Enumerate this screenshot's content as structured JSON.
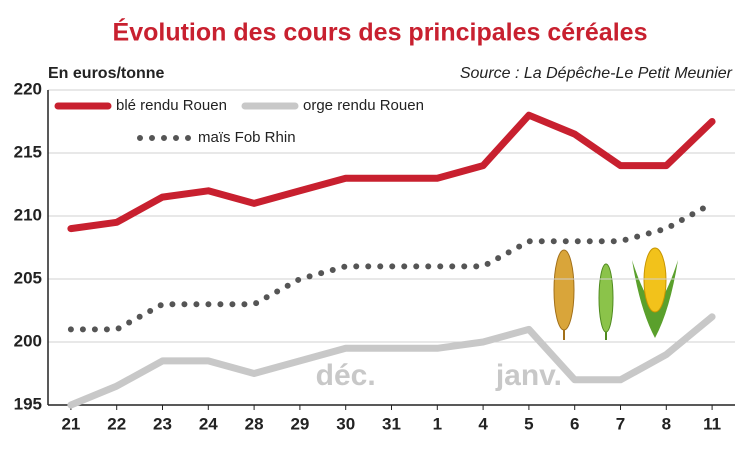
{
  "chart_data": {
    "type": "line",
    "title": "Évolution des cours des principales céréales",
    "y_label": "En euros/tonne",
    "source": "Source : La Dépêche-Le Petit Meunier",
    "categories": [
      "21",
      "22",
      "23",
      "24",
      "28",
      "29",
      "30",
      "31",
      "1",
      "4",
      "5",
      "6",
      "7",
      "8",
      "11"
    ],
    "series": [
      {
        "name": "blé rendu Rouen",
        "color": "#c8202f",
        "style": "solid",
        "values": [
          209,
          209.5,
          211.5,
          212,
          211,
          212,
          213,
          213,
          213,
          214,
          218,
          216.5,
          214,
          214,
          217.5
        ]
      },
      {
        "name": "orge rendu Rouen",
        "color": "#c8c8c8",
        "style": "solid",
        "values": [
          195,
          196.5,
          198.5,
          198.5,
          197.5,
          198.5,
          199.5,
          199.5,
          199.5,
          200,
          201,
          197,
          197,
          199,
          202
        ]
      },
      {
        "name": "maïs Fob Rhin",
        "color": "#555555",
        "style": "dotted",
        "values": [
          201,
          201,
          203,
          203,
          203,
          205,
          206,
          206,
          206,
          206,
          208,
          208,
          208,
          209,
          211
        ]
      }
    ],
    "annotations": [
      {
        "text": "déc.",
        "category": 6
      },
      {
        "text": "janv.",
        "category": 10
      }
    ],
    "ylim": [
      195,
      220
    ],
    "yticks": [
      195,
      200,
      205,
      210,
      215,
      220
    ],
    "grid": true
  }
}
